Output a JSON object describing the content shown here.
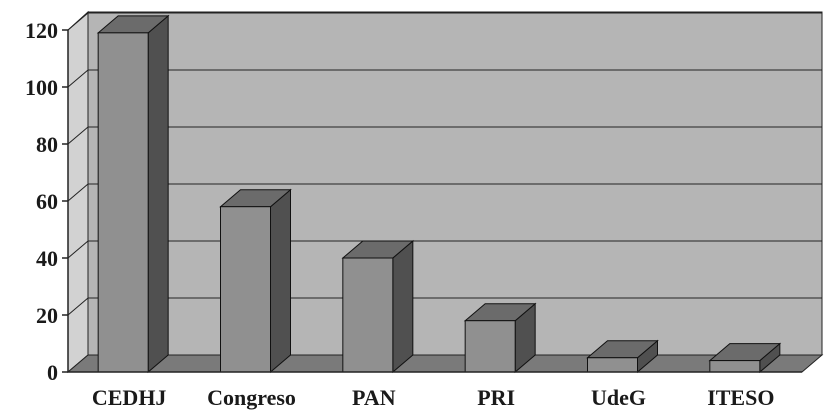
{
  "chart_data": {
    "type": "bar",
    "categories": [
      "CEDHJ",
      "Congreso",
      "PAN",
      "PRI",
      "UdeG",
      "ITESO"
    ],
    "values": [
      119,
      58,
      40,
      18,
      5,
      4
    ],
    "ylim": [
      0,
      120
    ],
    "yticks": [
      "0",
      "20",
      "40",
      "60",
      "80",
      "100",
      "120"
    ],
    "grid": true,
    "legend": "none",
    "style": "3d-column",
    "colors": {
      "bar_front": "#909090",
      "bar_top": "#6b6b6b",
      "bar_side": "#505050",
      "back_wall": "#b5b5b5",
      "side_wall": "#d2d2d2",
      "floor": "#7a7a7a",
      "gridline": "#222222"
    }
  }
}
